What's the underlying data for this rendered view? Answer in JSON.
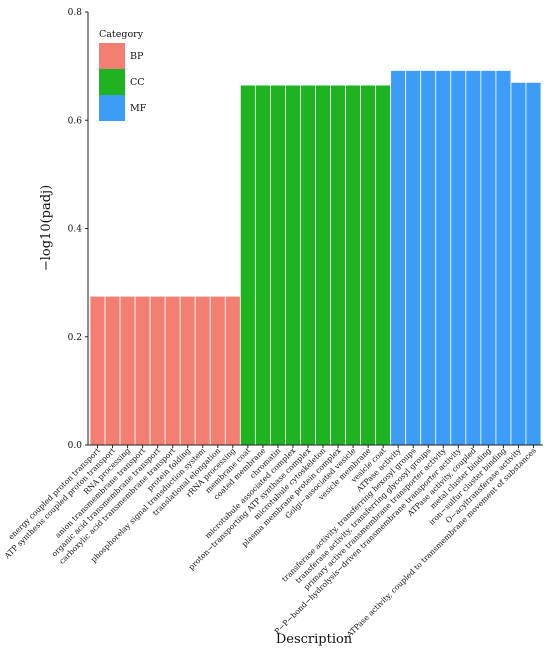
{
  "chart_data": {
    "type": "bar",
    "xlabel": "Description",
    "ylabel": "−log10(padj)",
    "ylim": [
      0,
      0.8
    ],
    "yticks": [
      "0.0",
      "0.2",
      "0.4",
      "0.6",
      "0.8"
    ],
    "grid": false,
    "legend": {
      "title": "Category",
      "placement": "top-left",
      "entries": [
        {
          "name": "BP",
          "color": "#F37F72"
        },
        {
          "name": "CC",
          "color": "#1FB322"
        },
        {
          "name": "MF",
          "color": "#3C9CF8"
        }
      ]
    },
    "categories": [
      "energy coupled proton transport",
      "ATP synthesis coupled proton transport",
      "RNA processing",
      "anion transmembrane transport",
      "organic acid transmembrane transport",
      "carboxylic acid transmembrane transport",
      "protein folding",
      "phosphorelay signal transduction system",
      "translational elongation",
      "rRNA processing",
      "membrane coat",
      "coated membrane",
      "chromatin",
      "microtubule associated complex",
      "proton−transporting ATP synthase complex",
      "microtubule cytoskeleton",
      "plasma membrane protein complex",
      "Golgi−associated vesicle",
      "vesicle membrane",
      "vesicle coat",
      "ATPase activity",
      "transferase activity, transferring hexosyl groups",
      "transferase activity, transferring glycosyl groups",
      "primary active transmembrane transporter activity",
      "P−P−bond−hydrolysis−driven transmembrane transporter activity",
      "ATPase activity, coupled",
      "metal cluster binding",
      "iron−sulfur cluster binding",
      "O−acyltransferase activity",
      "ATPase activity, coupled to transmembrane movement of substances"
    ],
    "values": [
      0.275,
      0.275,
      0.275,
      0.275,
      0.275,
      0.275,
      0.275,
      0.275,
      0.275,
      0.275,
      0.665,
      0.665,
      0.665,
      0.665,
      0.665,
      0.665,
      0.665,
      0.665,
      0.665,
      0.665,
      0.692,
      0.692,
      0.692,
      0.692,
      0.692,
      0.692,
      0.692,
      0.692,
      0.67,
      0.67
    ],
    "groups": [
      "BP",
      "BP",
      "BP",
      "BP",
      "BP",
      "BP",
      "BP",
      "BP",
      "BP",
      "BP",
      "CC",
      "CC",
      "CC",
      "CC",
      "CC",
      "CC",
      "CC",
      "CC",
      "CC",
      "CC",
      "MF",
      "MF",
      "MF",
      "MF",
      "MF",
      "MF",
      "MF",
      "MF",
      "MF",
      "MF"
    ]
  }
}
